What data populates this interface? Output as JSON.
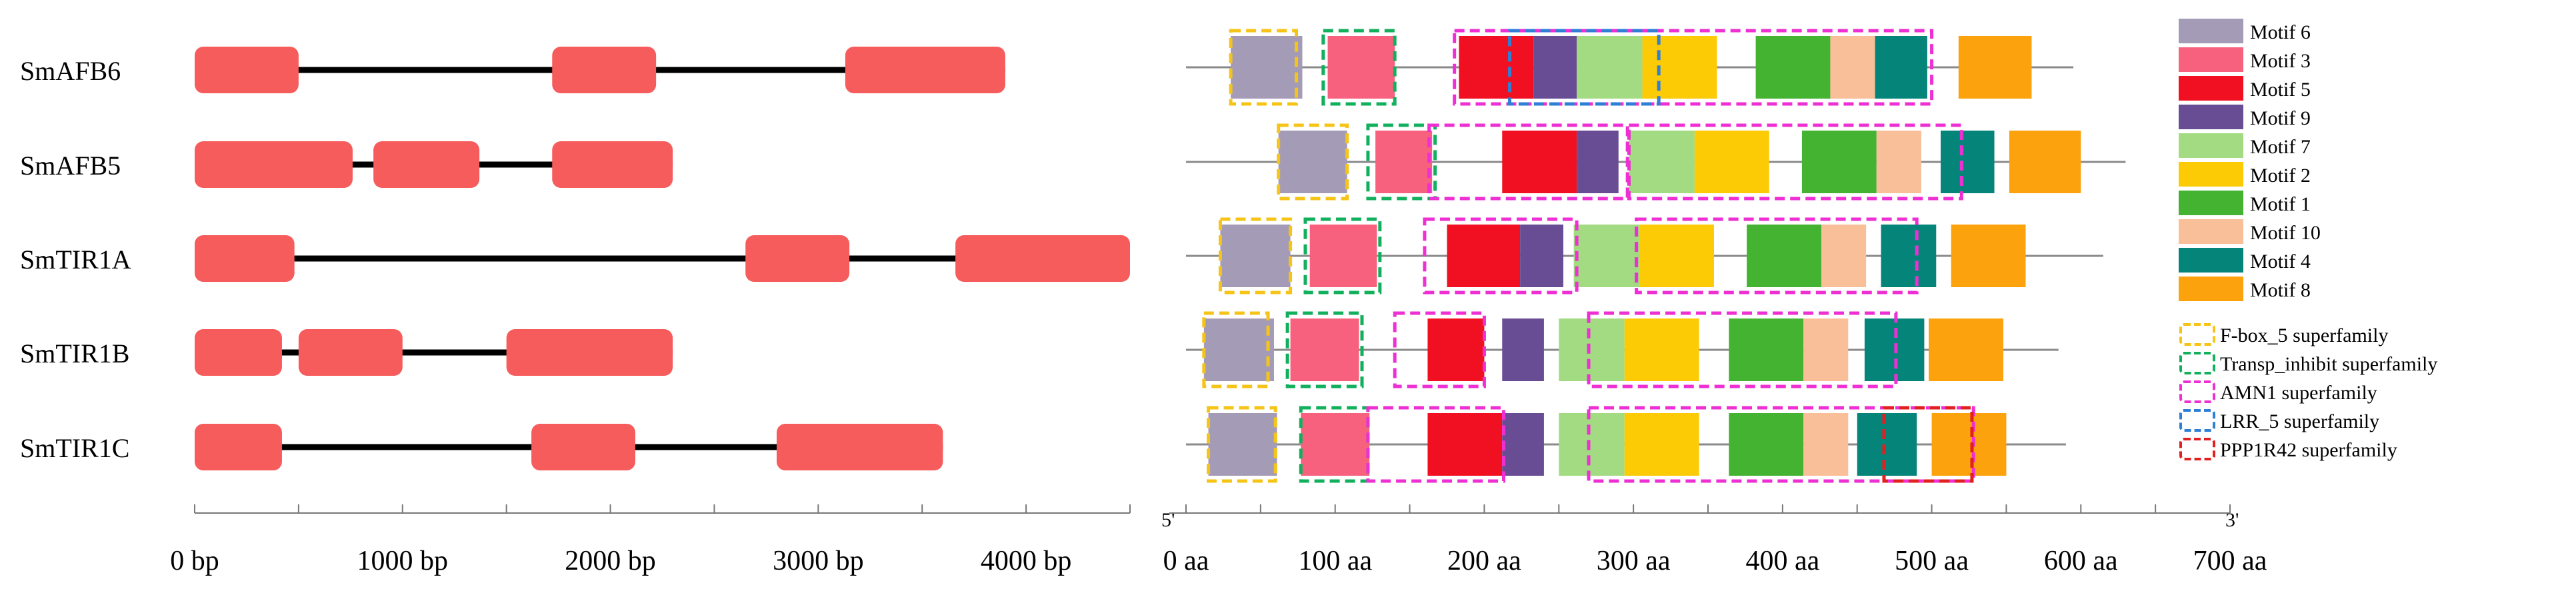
{
  "genes": [
    {
      "name": "SmAFB6"
    },
    {
      "name": "SmAFB5"
    },
    {
      "name": "SmTIR1A"
    },
    {
      "name": "SmTIR1B"
    },
    {
      "name": "SmTIR1C"
    }
  ],
  "gene_structure": {
    "axis_max": 4500,
    "ticks": [
      {
        "value": 0,
        "label": "0 bp"
      },
      {
        "value": 1000,
        "label": "1000 bp"
      },
      {
        "value": 2000,
        "label": "2000 bp"
      },
      {
        "value": 3000,
        "label": "3000 bp"
      },
      {
        "value": 4000,
        "label": "4000 bp"
      }
    ],
    "exon_color": "#f75c5c",
    "intron_color": "#000000",
    "rows": [
      {
        "length": 3900,
        "exons": [
          [
            0,
            500
          ],
          [
            1720,
            2220
          ],
          [
            3130,
            3900
          ]
        ]
      },
      {
        "length": 2300,
        "exons": [
          [
            0,
            760
          ],
          [
            860,
            1370
          ],
          [
            1720,
            2300
          ]
        ]
      },
      {
        "length": 4500,
        "exons": [
          [
            0,
            480
          ],
          [
            2650,
            3150
          ],
          [
            3660,
            4500
          ]
        ]
      },
      {
        "length": 2300,
        "exons": [
          [
            0,
            420
          ],
          [
            500,
            1000
          ],
          [
            1500,
            2300
          ]
        ]
      },
      {
        "length": 3600,
        "exons": [
          [
            0,
            420
          ],
          [
            1620,
            2120
          ],
          [
            2800,
            3600
          ]
        ]
      }
    ]
  },
  "protein": {
    "axis_max": 700,
    "five_prime": "5'",
    "three_prime": "3'",
    "ticks": [
      {
        "value": 0,
        "label": "0 aa"
      },
      {
        "value": 100,
        "label": "100 aa"
      },
      {
        "value": 200,
        "label": "200 aa"
      },
      {
        "value": 300,
        "label": "300 aa"
      },
      {
        "value": 400,
        "label": "400 aa"
      },
      {
        "value": 500,
        "label": "500 aa"
      },
      {
        "value": 600,
        "label": "600 aa"
      },
      {
        "value": 700,
        "label": "700 aa"
      }
    ],
    "rows": [
      {
        "length": 595,
        "motifs": [
          {
            "m": 6,
            "s": 30,
            "e": 78
          },
          {
            "m": 3,
            "s": 95,
            "e": 140
          },
          {
            "m": 5,
            "s": 183,
            "e": 233
          },
          {
            "m": 9,
            "s": 233,
            "e": 262
          },
          {
            "m": 7,
            "s": 262,
            "e": 306
          },
          {
            "m": 2,
            "s": 306,
            "e": 356
          },
          {
            "m": 1,
            "s": 382,
            "e": 432
          },
          {
            "m": 10,
            "s": 432,
            "e": 462
          },
          {
            "m": 4,
            "s": 462,
            "e": 497
          },
          {
            "m": 8,
            "s": 518,
            "e": 567
          }
        ],
        "domains": [
          {
            "d": "fbox",
            "s": 30,
            "e": 74
          },
          {
            "d": "transp",
            "s": 92,
            "e": 140
          },
          {
            "d": "amn1",
            "s": 180,
            "e": 500
          },
          {
            "d": "lrr",
            "s": 217,
            "e": 317
          }
        ]
      },
      {
        "length": 630,
        "motifs": [
          {
            "m": 6,
            "s": 62,
            "e": 108
          },
          {
            "m": 3,
            "s": 127,
            "e": 165
          },
          {
            "m": 5,
            "s": 212,
            "e": 262
          },
          {
            "m": 9,
            "s": 262,
            "e": 290
          },
          {
            "m": 7,
            "s": 297,
            "e": 341
          },
          {
            "m": 2,
            "s": 341,
            "e": 391
          },
          {
            "m": 1,
            "s": 413,
            "e": 463
          },
          {
            "m": 10,
            "s": 463,
            "e": 493
          },
          {
            "m": 4,
            "s": 506,
            "e": 542
          },
          {
            "m": 8,
            "s": 552,
            "e": 600
          }
        ],
        "domains": [
          {
            "d": "fbox",
            "s": 62,
            "e": 108
          },
          {
            "d": "transp",
            "s": 122,
            "e": 167
          },
          {
            "d": "amn1",
            "s": 163,
            "e": 296
          },
          {
            "d": "amn1",
            "s": 297,
            "e": 520
          }
        ]
      },
      {
        "length": 615,
        "motifs": [
          {
            "m": 6,
            "s": 23,
            "e": 70
          },
          {
            "m": 3,
            "s": 83,
            "e": 128
          },
          {
            "m": 5,
            "s": 175,
            "e": 224
          },
          {
            "m": 9,
            "s": 224,
            "e": 253
          },
          {
            "m": 7,
            "s": 260,
            "e": 304
          },
          {
            "m": 2,
            "s": 304,
            "e": 354
          },
          {
            "m": 1,
            "s": 376,
            "e": 426
          },
          {
            "m": 10,
            "s": 426,
            "e": 456
          },
          {
            "m": 4,
            "s": 466,
            "e": 503
          },
          {
            "m": 8,
            "s": 513,
            "e": 563
          }
        ],
        "domains": [
          {
            "d": "fbox",
            "s": 23,
            "e": 70
          },
          {
            "d": "transp",
            "s": 80,
            "e": 130
          },
          {
            "d": "amn1",
            "s": 160,
            "e": 262
          },
          {
            "d": "amn1",
            "s": 302,
            "e": 490
          }
        ]
      },
      {
        "length": 585,
        "motifs": [
          {
            "m": 6,
            "s": 12,
            "e": 59
          },
          {
            "m": 3,
            "s": 70,
            "e": 116
          },
          {
            "m": 5,
            "s": 162,
            "e": 200
          },
          {
            "m": 9,
            "s": 212,
            "e": 240
          },
          {
            "m": 7,
            "s": 250,
            "e": 294
          },
          {
            "m": 2,
            "s": 294,
            "e": 344
          },
          {
            "m": 1,
            "s": 364,
            "e": 414
          },
          {
            "m": 10,
            "s": 414,
            "e": 444
          },
          {
            "m": 4,
            "s": 455,
            "e": 495
          },
          {
            "m": 8,
            "s": 498,
            "e": 548
          }
        ],
        "domains": [
          {
            "d": "fbox",
            "s": 12,
            "e": 55
          },
          {
            "d": "transp",
            "s": 68,
            "e": 118
          },
          {
            "d": "amn1",
            "s": 140,
            "e": 200
          },
          {
            "d": "amn1",
            "s": 270,
            "e": 476
          }
        ]
      },
      {
        "length": 590,
        "motifs": [
          {
            "m": 6,
            "s": 15,
            "e": 61
          },
          {
            "m": 3,
            "s": 77,
            "e": 123
          },
          {
            "m": 5,
            "s": 162,
            "e": 212
          },
          {
            "m": 9,
            "s": 212,
            "e": 240
          },
          {
            "m": 7,
            "s": 250,
            "e": 294
          },
          {
            "m": 2,
            "s": 294,
            "e": 344
          },
          {
            "m": 1,
            "s": 364,
            "e": 414
          },
          {
            "m": 10,
            "s": 414,
            "e": 444
          },
          {
            "m": 4,
            "s": 450,
            "e": 490
          },
          {
            "m": 8,
            "s": 500,
            "e": 550
          }
        ],
        "domains": [
          {
            "d": "fbox",
            "s": 15,
            "e": 60
          },
          {
            "d": "transp",
            "s": 77,
            "e": 122
          },
          {
            "d": "amn1",
            "s": 122,
            "e": 213
          },
          {
            "d": "amn1",
            "s": 270,
            "e": 528
          },
          {
            "d": "ppp",
            "s": 468,
            "e": 527
          }
        ]
      }
    ]
  },
  "legend": {
    "motifs": [
      {
        "id": 6,
        "label": "Motif 6",
        "color": "#a49bb6"
      },
      {
        "id": 3,
        "label": "Motif 3",
        "color": "#f8617e"
      },
      {
        "id": 5,
        "label": "Motif 5",
        "color": "#f01021"
      },
      {
        "id": 9,
        "label": "Motif 9",
        "color": "#684c94"
      },
      {
        "id": 7,
        "label": "Motif 7",
        "color": "#a2db82"
      },
      {
        "id": 2,
        "label": "Motif 2",
        "color": "#fccb06"
      },
      {
        "id": 1,
        "label": "Motif 1",
        "color": "#44b332"
      },
      {
        "id": 10,
        "label": "Motif 10",
        "color": "#f9bf99"
      },
      {
        "id": 4,
        "label": "Motif 4",
        "color": "#05847a"
      },
      {
        "id": 8,
        "label": "Motif 8",
        "color": "#fba20c"
      }
    ],
    "domains": [
      {
        "id": "fbox",
        "label": "F-box_5 superfamily",
        "color": "#f6c417"
      },
      {
        "id": "transp",
        "label": "Transp_inhibit superfamily",
        "color": "#12b05d"
      },
      {
        "id": "amn1",
        "label": "AMN1 superfamily",
        "color": "#ee2fd3"
      },
      {
        "id": "lrr",
        "label": "LRR_5 superfamily",
        "color": "#2f7fd6"
      },
      {
        "id": "ppp",
        "label": "PPP1R42 superfamily",
        "color": "#e12121"
      }
    ]
  }
}
